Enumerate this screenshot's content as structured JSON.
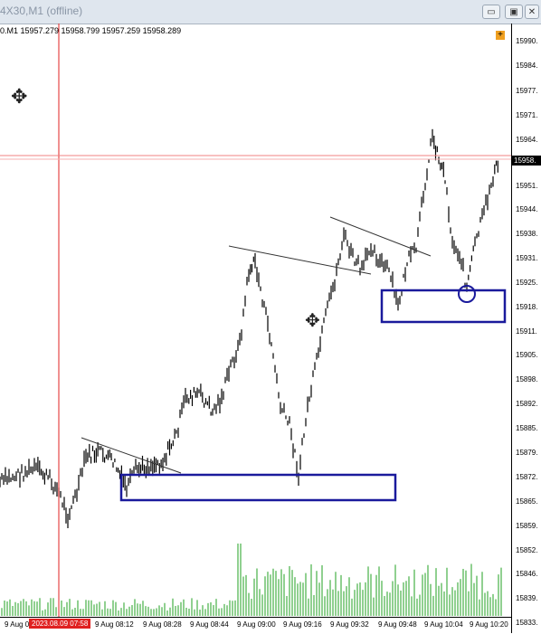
{
  "window": {
    "title": "4X30,M1 (offline)",
    "buttons": {
      "minimize": "▭",
      "restore": "▣",
      "close": "✕"
    }
  },
  "quote_line": "0.M1  15957.279 15958.799 15957.259 15958.289",
  "plus_label": "+",
  "price_axis": {
    "labels": [
      "15990.",
      "15984.",
      "15977.",
      "15971.",
      "15964.",
      "15951.",
      "15944.",
      "15938.",
      "15931.",
      "15925.",
      "15918.",
      "15911.",
      "15905.",
      "15898.",
      "15892.",
      "15885.",
      "15879.",
      "15872.",
      "15865.",
      "15859.",
      "15852.",
      "15846.",
      "15839.",
      "15833."
    ],
    "current_price": "15958."
  },
  "time_axis": {
    "labels": [
      "9 Aug 0",
      "9 Aug 08:12",
      "9 Aug 08:28",
      "9 Aug 08:44",
      "9 Aug 09:00",
      "9 Aug 09:16",
      "9 Aug 09:32",
      "9 Aug 09:48",
      "9 Aug 10:04",
      "9 Aug 10:20"
    ],
    "cursor_time": "2023.08.09 07:58"
  },
  "colors": {
    "zone_box": "#1a1a9c",
    "crosshair": "#e02020",
    "candles": "#000000",
    "volume": "#22a022"
  },
  "icons": [
    "move-icon",
    "move-icon"
  ]
}
